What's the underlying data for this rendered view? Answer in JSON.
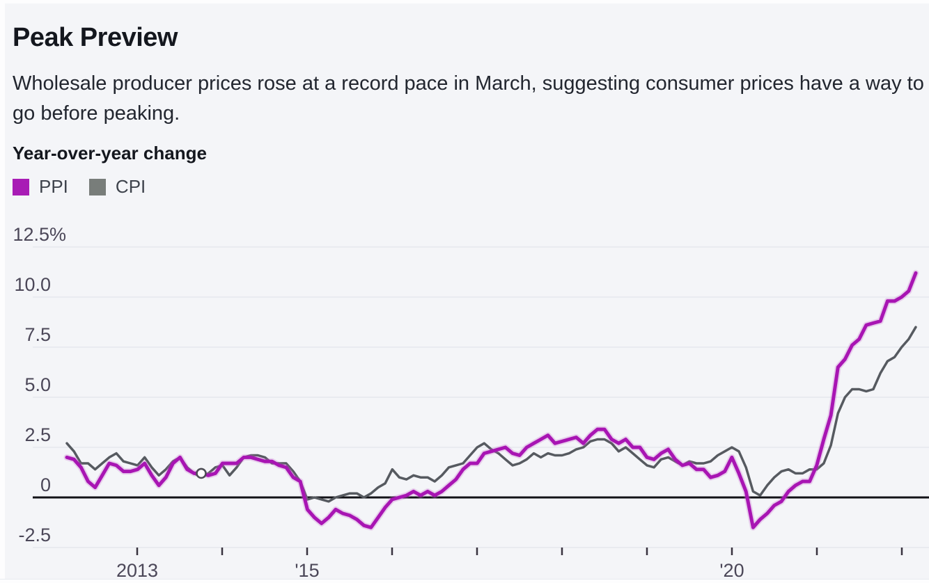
{
  "header": {
    "title": "Peak Preview",
    "subtitle": "Wholesale producer prices rose at a record pace in March, suggesting consumer prices have a way to go before peaking.",
    "axis_label": "Year-over-year change"
  },
  "colors": {
    "background": "#f4f5f8",
    "zero_line": "#121217",
    "gridline": "#e2e5ea",
    "axis_text": "#4b4758",
    "tick_mark": "#38333f",
    "legend_text": "#3e434c"
  },
  "chart_data": {
    "type": "line",
    "title": "Peak Preview",
    "subtitle": "Wholesale producer prices rose at a record pace in March, suggesting consumer prices have a way to go before peaking.",
    "ylabel": "Year-over-year change (%)",
    "ylim": [
      -2.5,
      12.5
    ],
    "grid": "horizontal",
    "legend_position": "top-left",
    "x_range": {
      "start": "2012-03",
      "end": "2022-03",
      "frequency": "monthly"
    },
    "yticks": [
      {
        "value": 12.5,
        "label": "12.5%"
      },
      {
        "value": 10.0,
        "label": "10.0"
      },
      {
        "value": 7.5,
        "label": "7.5"
      },
      {
        "value": 5.0,
        "label": "5.0"
      },
      {
        "value": 2.5,
        "label": "2.5"
      },
      {
        "value": 0,
        "label": "0"
      },
      {
        "value": -2.5,
        "label": "-2.5"
      }
    ],
    "xticks": [
      {
        "year": 2013,
        "label": "2013"
      },
      {
        "year": 2014,
        "label": ""
      },
      {
        "year": 2015,
        "label": "'15"
      },
      {
        "year": 2016,
        "label": ""
      },
      {
        "year": 2017,
        "label": ""
      },
      {
        "year": 2018,
        "label": ""
      },
      {
        "year": 2019,
        "label": ""
      },
      {
        "year": 2020,
        "label": "'20"
      },
      {
        "year": 2021,
        "label": ""
      },
      {
        "year": 2022,
        "label": ""
      }
    ],
    "series": [
      {
        "name": "PPI",
        "color": "#a815b3",
        "swatch_color": "#a81cb5",
        "values": [
          2.0,
          1.9,
          1.5,
          0.8,
          0.5,
          1.1,
          1.7,
          1.6,
          1.3,
          1.3,
          1.4,
          1.7,
          1.1,
          0.6,
          1.0,
          1.7,
          2.0,
          1.4,
          1.2,
          1.2,
          1.1,
          1.2,
          1.7,
          1.7,
          1.7,
          2.0,
          2.0,
          1.9,
          1.8,
          1.8,
          1.6,
          1.5,
          1.0,
          0.8,
          -0.6,
          -1.0,
          -1.3,
          -1.0,
          -0.6,
          -0.8,
          -0.9,
          -1.1,
          -1.4,
          -1.5,
          -1.0,
          -0.5,
          -0.1,
          0.0,
          0.1,
          0.3,
          0.1,
          0.3,
          0.1,
          0.3,
          0.6,
          0.9,
          1.4,
          1.7,
          1.7,
          2.2,
          2.3,
          2.4,
          2.5,
          2.2,
          2.1,
          2.5,
          2.7,
          2.9,
          3.1,
          2.7,
          2.8,
          2.9,
          3.0,
          2.7,
          3.1,
          3.4,
          3.4,
          2.9,
          2.7,
          2.9,
          2.5,
          2.5,
          2.0,
          1.9,
          2.2,
          2.4,
          1.9,
          1.6,
          1.7,
          1.4,
          1.4,
          1.0,
          1.1,
          1.3,
          2.0,
          1.2,
          0.3,
          -1.5,
          -1.1,
          -0.8,
          -0.4,
          -0.2,
          0.3,
          0.6,
          0.8,
          0.8,
          1.6,
          2.9,
          4.1,
          6.5,
          6.9,
          7.6,
          7.9,
          8.6,
          8.7,
          8.8,
          9.8,
          9.8,
          10.0,
          10.3,
          11.2
        ]
      },
      {
        "name": "CPI",
        "color": "#565a60",
        "swatch_color": "#787d7a",
        "values": [
          2.7,
          2.3,
          1.7,
          1.7,
          1.4,
          1.7,
          2.0,
          2.2,
          1.8,
          1.7,
          1.6,
          2.0,
          1.5,
          1.1,
          1.4,
          1.8,
          2.0,
          1.5,
          1.2,
          1.0,
          1.2,
          1.5,
          1.6,
          1.1,
          1.5,
          2.0,
          2.1,
          2.1,
          2.0,
          1.7,
          1.7,
          1.7,
          1.3,
          0.8,
          -0.1,
          0.0,
          -0.1,
          -0.2,
          0.0,
          0.1,
          0.2,
          0.2,
          0.0,
          0.2,
          0.5,
          0.7,
          1.4,
          1.0,
          0.9,
          1.1,
          1.0,
          1.0,
          0.8,
          1.1,
          1.5,
          1.6,
          1.7,
          2.1,
          2.5,
          2.7,
          2.4,
          2.2,
          1.9,
          1.6,
          1.7,
          1.9,
          2.2,
          2.0,
          2.2,
          2.1,
          2.1,
          2.2,
          2.4,
          2.5,
          2.8,
          2.9,
          2.9,
          2.7,
          2.3,
          2.5,
          2.2,
          1.9,
          1.6,
          1.5,
          1.9,
          2.0,
          1.8,
          1.6,
          1.8,
          1.7,
          1.7,
          1.8,
          2.1,
          2.3,
          2.5,
          2.3,
          1.5,
          0.3,
          0.1,
          0.6,
          1.0,
          1.3,
          1.4,
          1.2,
          1.2,
          1.4,
          1.4,
          1.7,
          2.6,
          4.2,
          5.0,
          5.4,
          5.4,
          5.3,
          5.4,
          6.2,
          6.8,
          7.0,
          7.5,
          7.9,
          8.5
        ]
      }
    ],
    "marker": {
      "series": "PPI",
      "month": "2013-10",
      "month_index": 19,
      "value": 1.2,
      "style": "open-circle"
    }
  }
}
